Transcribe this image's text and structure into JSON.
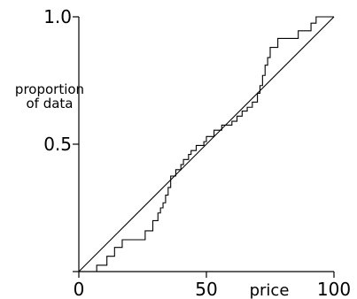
{
  "chart_data": {
    "type": "line",
    "title": "",
    "xlabel": "price",
    "ylabel_lines": [
      "proportion",
      "of data"
    ],
    "xlim": [
      0,
      100
    ],
    "ylim": [
      0,
      1
    ],
    "x_ticks": [
      {
        "value": 0,
        "label": "0"
      },
      {
        "value": 50,
        "label": "50"
      },
      {
        "value": 100,
        "label": "100"
      }
    ],
    "y_ticks": [
      {
        "value": 0,
        "label": ""
      },
      {
        "value": 0.5,
        "label": "0.5"
      },
      {
        "value": 1.0,
        "label": "1.0"
      }
    ],
    "grid": false,
    "series": [
      {
        "kind": "step",
        "points": [
          [
            7,
            0.0
          ],
          [
            7,
            0.025
          ],
          [
            11,
            0.025
          ],
          [
            11,
            0.06
          ],
          [
            14,
            0.06
          ],
          [
            14,
            0.095
          ],
          [
            17,
            0.095
          ],
          [
            17,
            0.125
          ],
          [
            26,
            0.125
          ],
          [
            26,
            0.16
          ],
          [
            29,
            0.16
          ],
          [
            29,
            0.2
          ],
          [
            31,
            0.2
          ],
          [
            31,
            0.23
          ],
          [
            32,
            0.23
          ],
          [
            32,
            0.25
          ],
          [
            33,
            0.25
          ],
          [
            33,
            0.27
          ],
          [
            34,
            0.27
          ],
          [
            34,
            0.3
          ],
          [
            35,
            0.3
          ],
          [
            35,
            0.33
          ],
          [
            36,
            0.33
          ],
          [
            36,
            0.375
          ],
          [
            38,
            0.375
          ],
          [
            38,
            0.4
          ],
          [
            40,
            0.4
          ],
          [
            40,
            0.42
          ],
          [
            41,
            0.42
          ],
          [
            41,
            0.44
          ],
          [
            43,
            0.44
          ],
          [
            43,
            0.46
          ],
          [
            44,
            0.46
          ],
          [
            44,
            0.475
          ],
          [
            46,
            0.475
          ],
          [
            46,
            0.495
          ],
          [
            49,
            0.495
          ],
          [
            49,
            0.51
          ],
          [
            50,
            0.51
          ],
          [
            50,
            0.53
          ],
          [
            53,
            0.53
          ],
          [
            53,
            0.555
          ],
          [
            56,
            0.555
          ],
          [
            56,
            0.575
          ],
          [
            60,
            0.575
          ],
          [
            60,
            0.59
          ],
          [
            62,
            0.59
          ],
          [
            62,
            0.61
          ],
          [
            64,
            0.61
          ],
          [
            64,
            0.63
          ],
          [
            66,
            0.63
          ],
          [
            66,
            0.645
          ],
          [
            68,
            0.645
          ],
          [
            68,
            0.665
          ],
          [
            70,
            0.665
          ],
          [
            70,
            0.7
          ],
          [
            71,
            0.7
          ],
          [
            71,
            0.73
          ],
          [
            72,
            0.73
          ],
          [
            72,
            0.77
          ],
          [
            73,
            0.77
          ],
          [
            73,
            0.81
          ],
          [
            74,
            0.81
          ],
          [
            74,
            0.84
          ],
          [
            75,
            0.84
          ],
          [
            75,
            0.88
          ],
          [
            78,
            0.88
          ],
          [
            78,
            0.915
          ],
          [
            86,
            0.915
          ],
          [
            86,
            0.945
          ],
          [
            91,
            0.945
          ],
          [
            91,
            0.975
          ],
          [
            93,
            0.975
          ],
          [
            93,
            1.0
          ],
          [
            100,
            1.0
          ]
        ]
      },
      {
        "kind": "line",
        "points": [
          [
            0,
            0
          ],
          [
            100,
            1
          ]
        ]
      }
    ]
  }
}
